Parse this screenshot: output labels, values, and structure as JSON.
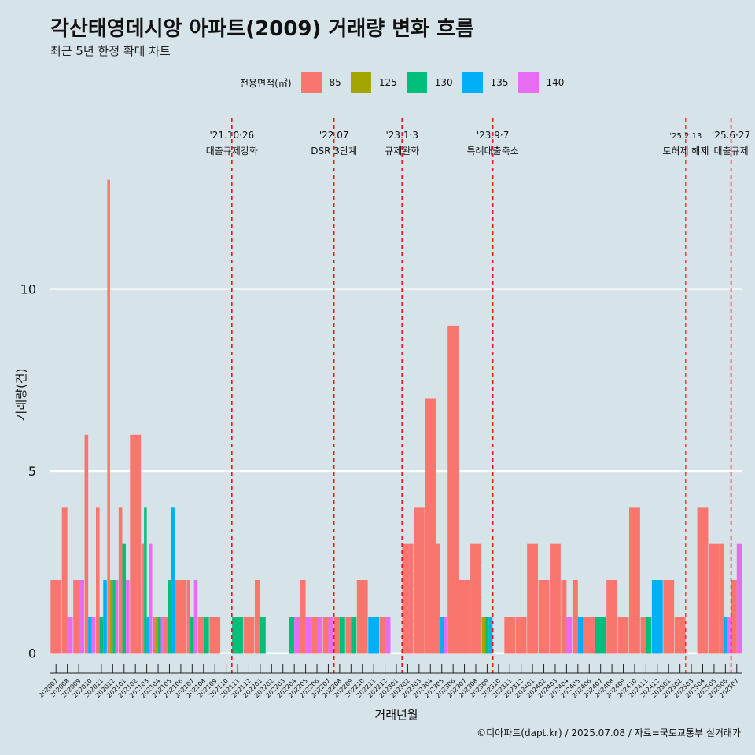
{
  "header": {
    "title": "각산태영데시앙 아파트(2009) 거래량 변화 흐름",
    "subtitle": "최근 5년 한정 확대 차트"
  },
  "legend": {
    "title": "전용면적(㎡)",
    "items": [
      {
        "label": "85",
        "color": "#f8766d"
      },
      {
        "label": "125",
        "color": "#a3a500"
      },
      {
        "label": "130",
        "color": "#00bf7d"
      },
      {
        "label": "135",
        "color": "#00b0f6"
      },
      {
        "label": "140",
        "color": "#e76bf3"
      }
    ]
  },
  "caption": "©디아파트(dapt.kr) / 2025.07.08 / 자료=국토교통부 실거래가",
  "chart_data": {
    "type": "bar",
    "title": "각산태영데시앙 아파트(2009) 거래량 변화 흐름",
    "xlabel": "거래년월",
    "ylabel": "거래량(건)",
    "ylim": [
      -0.55,
      14.7
    ],
    "yticks": [
      0,
      5,
      10
    ],
    "categories": [
      "202007",
      "202008",
      "202009",
      "202010",
      "202011",
      "202012",
      "202101",
      "202102",
      "202103",
      "202104",
      "202105",
      "202106",
      "202107",
      "202108",
      "202109",
      "202110",
      "202111",
      "202112",
      "202201",
      "202202",
      "202203",
      "202204",
      "202205",
      "202206",
      "202207",
      "202208",
      "202209",
      "202210",
      "202211",
      "202212",
      "202301",
      "202302",
      "202303",
      "202304",
      "202305",
      "202306",
      "202307",
      "202308",
      "202309",
      "202310",
      "202311",
      "202312",
      "202401",
      "202402",
      "202403",
      "202404",
      "202405",
      "202406",
      "202407",
      "202408",
      "202409",
      "202410",
      "202411",
      "202412",
      "202501",
      "202502",
      "202503",
      "202504",
      "202505",
      "202506",
      "202507"
    ],
    "xtick_labels": [
      "202007",
      "202008",
      "202009",
      "202010",
      "202011",
      "202012",
      "202101",
      "202102",
      "202103",
      "202104",
      "202105",
      "202106",
      "202107",
      "202108",
      "202109",
      "202110",
      "202111",
      "202112",
      "202201",
      "202202",
      "202203",
      "202204",
      "202205",
      "202206",
      "202207",
      "202208",
      "202209",
      "202210",
      "202211",
      "202212",
      "202301",
      "202302",
      "202303",
      "202304",
      "202305",
      "202306",
      "202307",
      "202308",
      "202309",
      "202310",
      "202311",
      "202312",
      "202401",
      "202402",
      "202403",
      "202404",
      "202405",
      "202406",
      "202407",
      "202408",
      "202409",
      "202410",
      "202411",
      "202412",
      "202501",
      "202502",
      "202503",
      "202504",
      "202505",
      "202506",
      "202507"
    ],
    "series": [
      {
        "name": "85",
        "color": "#f8766d",
        "values": [
          2,
          4,
          2,
          6,
          4,
          13,
          4,
          6,
          3,
          1,
          1,
          2,
          2,
          1,
          1,
          0,
          0,
          1,
          2,
          0,
          0,
          0,
          2,
          1,
          1,
          1,
          1,
          2,
          0,
          1,
          0,
          3,
          4,
          7,
          3,
          9,
          2,
          3,
          0,
          0,
          1,
          1,
          3,
          2,
          3,
          2,
          2,
          1,
          0,
          2,
          1,
          4,
          1,
          0,
          2,
          1,
          0,
          4,
          3,
          3,
          2
        ]
      },
      {
        "name": "125",
        "color": "#a3a500",
        "values": [
          0,
          0,
          0,
          0,
          0,
          2,
          0,
          0,
          0,
          1,
          0,
          0,
          0,
          0,
          0,
          0,
          0,
          0,
          0,
          0,
          0,
          0,
          0,
          0,
          0,
          0,
          0,
          0,
          0,
          0,
          0,
          0,
          0,
          0,
          0,
          0,
          0,
          0,
          1,
          0,
          0,
          0,
          0,
          0,
          0,
          0,
          0,
          0,
          0,
          0,
          0,
          0,
          0,
          0,
          0,
          0,
          0,
          0,
          0,
          0,
          0
        ]
      },
      {
        "name": "130",
        "color": "#00bf7d",
        "values": [
          0,
          0,
          0,
          0,
          1,
          2,
          3,
          0,
          4,
          1,
          2,
          0,
          1,
          1,
          0,
          0,
          1,
          0,
          1,
          0,
          0,
          1,
          0,
          0,
          0,
          1,
          1,
          0,
          0,
          0,
          0,
          0,
          0,
          0,
          0,
          0,
          0,
          0,
          1,
          0,
          0,
          0,
          0,
          0,
          0,
          0,
          0,
          0,
          1,
          0,
          0,
          0,
          1,
          0,
          0,
          0,
          0,
          0,
          0,
          0,
          0
        ]
      },
      {
        "name": "135",
        "color": "#00b0f6",
        "values": [
          0,
          0,
          0,
          1,
          2,
          0,
          0,
          0,
          1,
          0,
          4,
          0,
          0,
          0,
          0,
          0,
          0,
          0,
          0,
          0,
          0,
          0,
          0,
          0,
          0,
          0,
          0,
          0,
          1,
          0,
          0,
          0,
          0,
          0,
          1,
          0,
          0,
          0,
          1,
          0,
          0,
          0,
          0,
          0,
          0,
          0,
          1,
          0,
          0,
          0,
          0,
          0,
          0,
          2,
          0,
          0,
          0,
          0,
          0,
          1,
          0
        ]
      },
      {
        "name": "140",
        "color": "#e76bf3",
        "values": [
          0,
          1,
          2,
          1,
          0,
          2,
          2,
          0,
          3,
          1,
          0,
          0,
          2,
          0,
          0,
          0,
          0,
          0,
          0,
          0,
          0,
          1,
          1,
          1,
          1,
          0,
          0,
          0,
          0,
          1,
          0,
          0,
          0,
          0,
          1,
          0,
          0,
          0,
          0,
          0,
          0,
          0,
          0,
          0,
          0,
          1,
          0,
          0,
          0,
          0,
          0,
          0,
          0,
          0,
          0,
          0,
          0,
          0,
          0,
          1,
          3
        ]
      }
    ],
    "events": [
      {
        "x": 15.5,
        "date": "'21.10·26",
        "label": "대출규제강화"
      },
      {
        "x": 24.5,
        "date": "'22.07",
        "label": "DSR 3단계"
      },
      {
        "x": 30.5,
        "date": "'23.1·3",
        "label": "규제완화"
      },
      {
        "x": 38.5,
        "date": "'23.9·7",
        "label": "특례대출축소"
      },
      {
        "x": 55.5,
        "date": "'25.2.13",
        "label": "토허제 해제"
      },
      {
        "x": 59.5,
        "date": "'25.6·27",
        "label": "대출규제"
      }
    ]
  }
}
